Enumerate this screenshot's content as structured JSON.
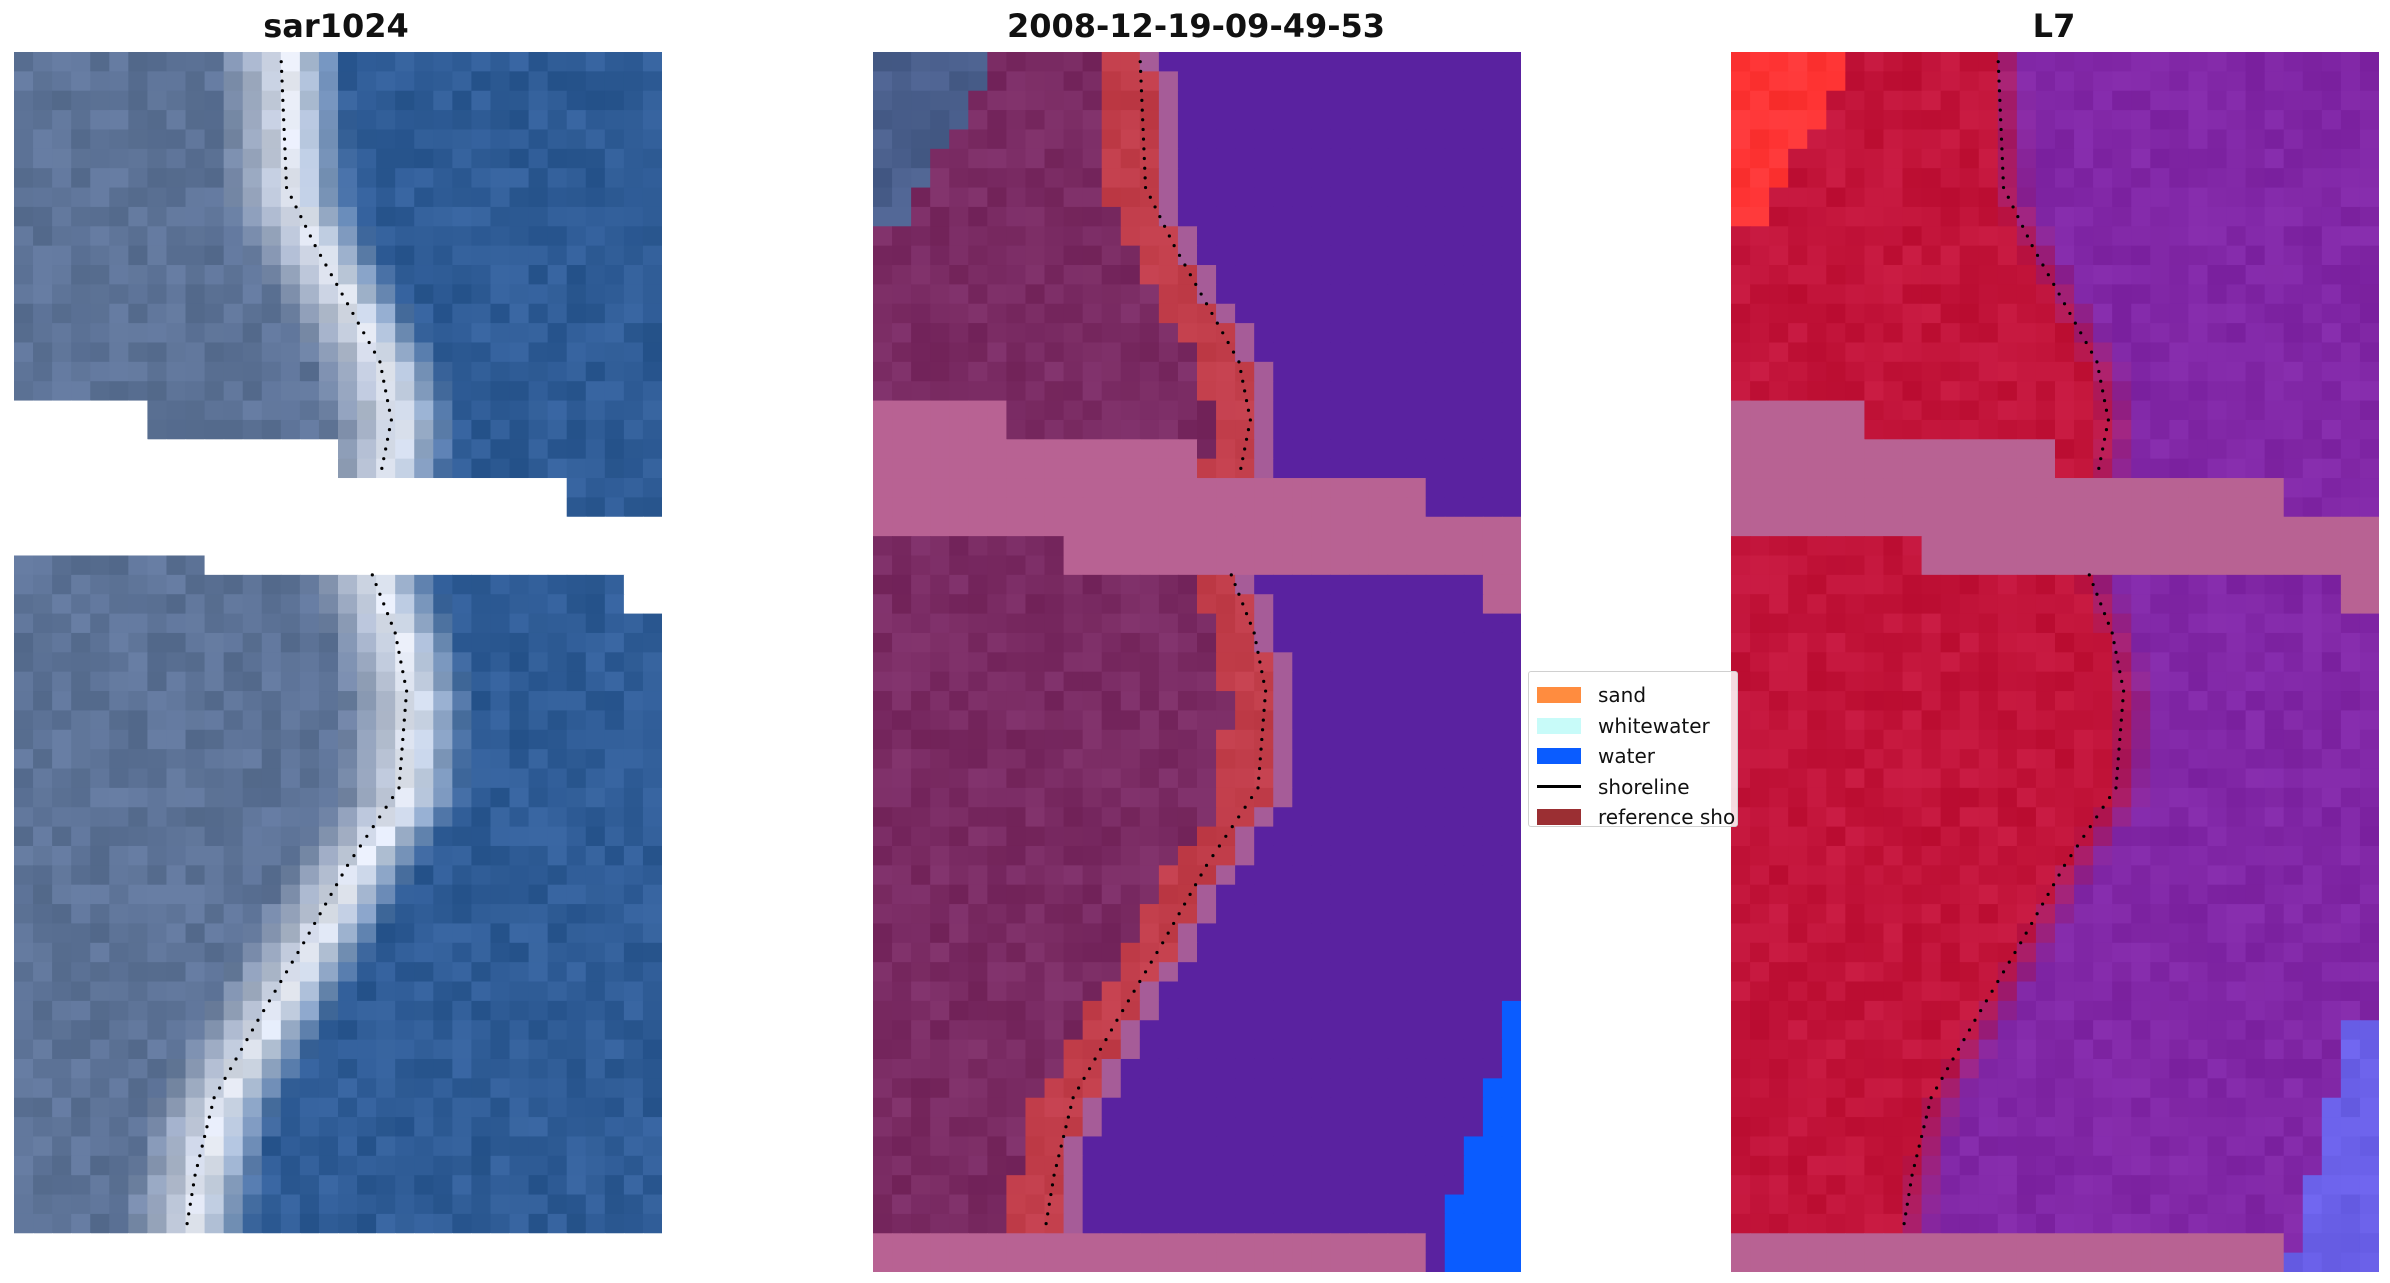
{
  "panels": [
    {
      "title": "sar1024",
      "view": "rgb"
    },
    {
      "title": "2008-12-19-09-49-53",
      "view": "classified"
    },
    {
      "title": "L7",
      "view": "false-color"
    }
  ],
  "legend": {
    "items": [
      {
        "label": "sand",
        "color": "#ff8c3f",
        "kind": "patch"
      },
      {
        "label": "whitewater",
        "color": "#c8fbf9",
        "kind": "patch"
      },
      {
        "label": "water",
        "color": "#0a5cff",
        "kind": "patch"
      },
      {
        "label": "shoreline",
        "color": "#000000",
        "kind": "line"
      },
      {
        "label": "reference shoreline",
        "color": "#9b2f33",
        "kind": "patch"
      }
    ]
  },
  "colors": {
    "rgb_water": "#2f5c96",
    "rgb_land": "#5d7397",
    "rgb_surf": "#e9edf6",
    "class_water": "#5a22a0",
    "class_land": "#7a2b63",
    "class_sand_overlay": "#c13d4a",
    "class_nodata": "#b86293",
    "class_water_blue": "#0a5cff",
    "fc_land": "#c2143a",
    "fc_water": "#8127a6",
    "fc_nodata": "#b86293",
    "shoreline_dot": "#000000"
  }
}
